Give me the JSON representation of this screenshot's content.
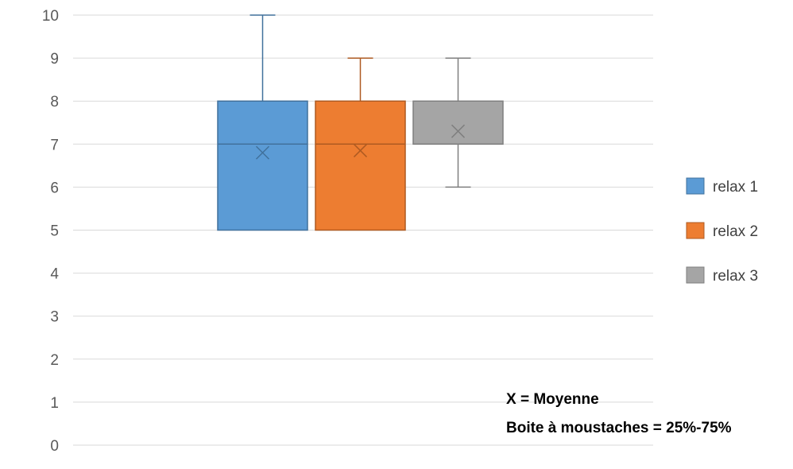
{
  "chart_data": {
    "type": "boxplot",
    "ylim": [
      0,
      10
    ],
    "y_ticks": [
      "0",
      "1",
      "2",
      "3",
      "4",
      "5",
      "6",
      "7",
      "8",
      "9",
      "10"
    ],
    "grid": true,
    "legend_position": "right",
    "series": [
      {
        "name": "relax 1",
        "color": "#5B9BD5",
        "stroke": "#41719C",
        "min": 5,
        "q1": 5,
        "median": 7,
        "q3": 8,
        "max": 10,
        "mean": 6.8
      },
      {
        "name": "relax 2",
        "color": "#ED7D31",
        "stroke": "#AE5A21",
        "min": 5,
        "q1": 5,
        "median": 7,
        "q3": 8,
        "max": 9,
        "mean": 6.85
      },
      {
        "name": "relax 3",
        "color": "#A5A5A5",
        "stroke": "#7F7F7F",
        "min": 6,
        "q1": 7,
        "median": 7,
        "q3": 8,
        "max": 9,
        "mean": 7.3
      }
    ],
    "annotations": [
      "X = Moyenne",
      "Boite à moustaches = 25%-75%"
    ]
  }
}
